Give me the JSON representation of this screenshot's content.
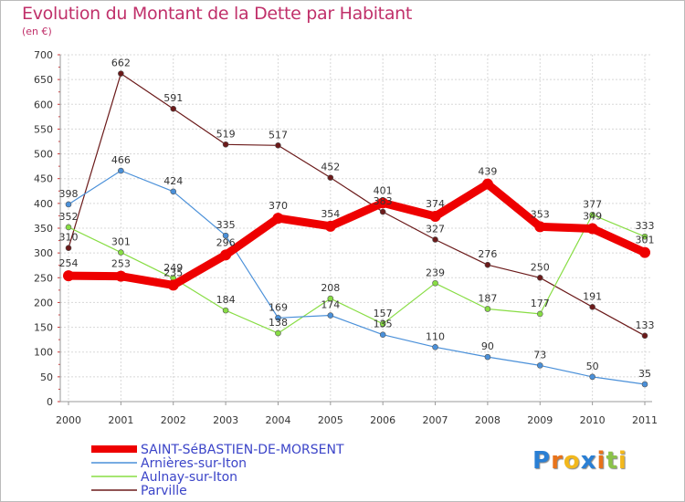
{
  "title": "Evolution du Montant de la Dette par Habitant",
  "subtitle": "(en €)",
  "logo": {
    "letters": [
      "P",
      "r",
      "o",
      "x",
      "i",
      "t",
      "i"
    ],
    "colors": [
      "#2a7fd4",
      "#e8731a",
      "#f2b81d",
      "#2a7fd4",
      "#e8731a",
      "#8bc34a",
      "#f2b81d"
    ]
  },
  "chart_data": {
    "type": "line",
    "x": [
      "2000",
      "2001",
      "2002",
      "2003",
      "2004",
      "2005",
      "2006",
      "2007",
      "2008",
      "2009",
      "2010",
      "2011"
    ],
    "ylim": [
      0,
      700
    ],
    "yticks": [
      "0",
      "50",
      "100",
      "150",
      "200",
      "250",
      "300",
      "350",
      "400",
      "450",
      "500",
      "550",
      "600",
      "650",
      "700"
    ],
    "grid": true,
    "legend_position": "bottom-left",
    "series": [
      {
        "name": "SAINT-SéBASTIEN-DE-MORSENT",
        "color": "#ee0000",
        "values": [
          254,
          253,
          235,
          296,
          370,
          354,
          401,
          374,
          439,
          353,
          349,
          301
        ],
        "labels": [
          "254",
          "253",
          "235",
          "296",
          "370",
          "354",
          "401",
          "374",
          "439",
          "353",
          "349",
          "301"
        ]
      },
      {
        "name": "Arnières-sur-Iton",
        "color": "#4a90d9",
        "values": [
          398,
          466,
          424,
          335,
          169,
          174,
          135,
          110,
          90,
          73,
          50,
          35
        ],
        "labels": [
          "398",
          "466",
          "424",
          "335",
          "169",
          "174",
          "135",
          "110",
          "90",
          "73",
          "50",
          "35"
        ]
      },
      {
        "name": "Aulnay-sur-Iton",
        "color": "#88dd44",
        "values": [
          352,
          301,
          249,
          184,
          138,
          208,
          157,
          239,
          187,
          177,
          377,
          333
        ],
        "labels": [
          "352",
          "301",
          "249",
          "184",
          "138",
          "208",
          "157",
          "239",
          "187",
          "177",
          "377",
          "333"
        ]
      },
      {
        "name": "Parville",
        "color": "#6b1a1a",
        "values": [
          310,
          662,
          591,
          519,
          517,
          452,
          383,
          327,
          276,
          250,
          191,
          133
        ],
        "labels": [
          "310",
          "662",
          "591",
          "519",
          "517",
          "452",
          "383",
          "327",
          "276",
          "250",
          "191",
          "133"
        ]
      }
    ]
  }
}
